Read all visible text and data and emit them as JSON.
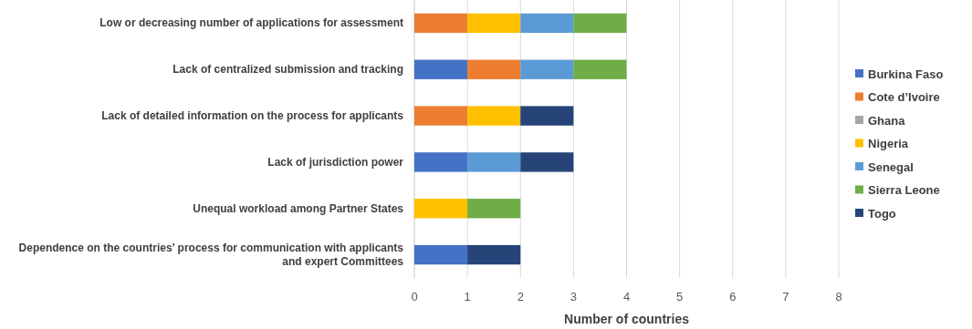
{
  "chart_data": {
    "type": "bar",
    "orientation": "horizontal",
    "stacked": true,
    "xlabel": "Number of countries",
    "categories": [
      "Low or decreasing number of applications for assessment",
      "Lack of centralized submission and tracking",
      "Lack of detailed information on the process for applicants",
      "Lack of jurisdiction power",
      "Unequal workload among Partner States",
      "Dependence on the countries’ process for communication with applicants and expert Committees"
    ],
    "series": [
      {
        "name": "Burkina Faso",
        "color": "#4472c4",
        "values": [
          0,
          1,
          0,
          1,
          0,
          1
        ]
      },
      {
        "name": "Cote d’Ivoire",
        "color": "#ed7d31",
        "values": [
          1,
          1,
          1,
          0,
          0,
          0
        ]
      },
      {
        "name": "Ghana",
        "color": "#a5a5a5",
        "values": [
          0,
          0,
          0,
          0,
          0,
          0
        ]
      },
      {
        "name": "Nigeria",
        "color": "#ffc000",
        "values": [
          1,
          0,
          1,
          0,
          1,
          0
        ]
      },
      {
        "name": "Senegal",
        "color": "#5b9bd5",
        "values": [
          1,
          1,
          0,
          1,
          0,
          0
        ]
      },
      {
        "name": "Sierra Leone",
        "color": "#70ad47",
        "values": [
          1,
          1,
          0,
          0,
          1,
          0
        ]
      },
      {
        "name": "Togo",
        "color": "#264478",
        "values": [
          0,
          0,
          1,
          1,
          0,
          1
        ]
      }
    ],
    "xlim": [
      0,
      8
    ],
    "xticks": [
      0,
      1,
      2,
      3,
      4,
      5,
      6,
      7,
      8
    ],
    "grid": "x",
    "legend": "right"
  }
}
